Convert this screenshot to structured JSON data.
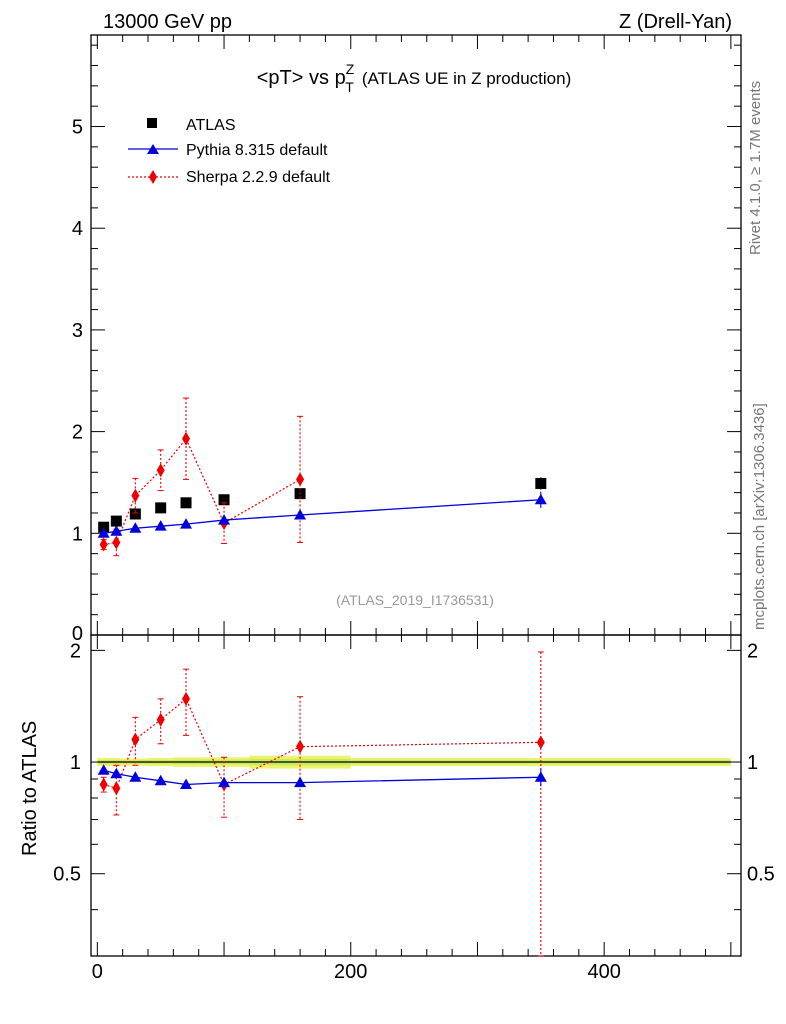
{
  "header": {
    "left": "13000 GeV pp",
    "right": "Z (Drell-Yan)"
  },
  "title": {
    "main": "<pT> vs p",
    "sup": "Z",
    "sub": "T",
    "suffix": "(ATLAS UE in Z production)"
  },
  "side_labels": {
    "rivet": "Rivet 4.1.0, ≥ 1.7M events",
    "site": "mcplots.cern.ch [arXiv:1306.3436]"
  },
  "watermark": "(ATLAS_2019_I1736531)",
  "colors": {
    "data": "#000000",
    "pythia": "#0000dd",
    "sherpa": "#ee0000",
    "band_outer": "#eef36a",
    "band_inner": "#c8ec60"
  },
  "chart_data": [
    {
      "type": "scatter",
      "panel": "main",
      "title": "<pT> vs pT^Z (ATLAS UE in Z production)",
      "xlabel": "",
      "ylabel": "",
      "xlim": [
        -5,
        508
      ],
      "ylim": [
        0,
        5.9
      ],
      "y_ticks": [
        "1",
        "2",
        "3",
        "4",
        "5"
      ],
      "y_tick_values": [
        1,
        2,
        3,
        4,
        5
      ],
      "y_zero_label": "0",
      "legend": {
        "position": "top-left",
        "entries": [
          "ATLAS",
          "Pythia 8.315 default",
          "Sherpa 2.2.9 default"
        ]
      },
      "series": [
        {
          "name": "ATLAS",
          "style": "square",
          "x": [
            5,
            15,
            30,
            50,
            70,
            100,
            160,
            350
          ],
          "y": [
            1.06,
            1.12,
            1.19,
            1.25,
            1.3,
            1.33,
            1.39,
            1.49
          ],
          "err": [
            0.02,
            0.02,
            0.02,
            0.02,
            0.03,
            0.03,
            0.04,
            0.06
          ]
        },
        {
          "name": "Pythia 8.315 default",
          "style": "triangle-line",
          "x": [
            5,
            15,
            30,
            50,
            70,
            100,
            160,
            350
          ],
          "y": [
            1.0,
            1.02,
            1.05,
            1.07,
            1.09,
            1.13,
            1.18,
            1.33
          ],
          "err": [
            0.01,
            0.01,
            0.01,
            0.01,
            0.01,
            0.02,
            0.03,
            0.08
          ]
        },
        {
          "name": "Sherpa 2.2.9 default",
          "style": "diamond-dotted",
          "x": [
            5,
            15,
            30,
            50,
            70,
            100,
            160
          ],
          "y": [
            0.89,
            0.91,
            1.37,
            1.62,
            1.93,
            1.1,
            1.53
          ],
          "err": [
            0.05,
            0.13,
            0.17,
            0.2,
            0.4,
            0.2,
            0.62
          ]
        }
      ]
    },
    {
      "type": "scatter",
      "panel": "ratio",
      "ylabel": "Ratio to ATLAS",
      "xlim": [
        -5,
        508
      ],
      "ylim": [
        0.3,
        2.2
      ],
      "x_ticks": [
        "0",
        "200",
        "400"
      ],
      "x_tick_values": [
        0,
        200,
        400
      ],
      "y_ticks": [
        "0.5",
        "1",
        "2"
      ],
      "y_tick_values": [
        0.5,
        1,
        2
      ],
      "reference_line": 1,
      "band": {
        "x_edges": [
          0,
          10,
          20,
          40,
          60,
          80,
          120,
          200,
          500
        ],
        "outer": [
          0.025,
          0.025,
          0.022,
          0.025,
          0.03,
          0.03,
          0.04,
          0.025
        ],
        "inner": [
          0.012,
          0.012,
          0.012,
          0.012,
          0.015,
          0.015,
          0.02,
          0.012
        ]
      },
      "series": [
        {
          "name": "Pythia 8.315 default",
          "style": "triangle-line",
          "x": [
            5,
            15,
            30,
            50,
            70,
            100,
            160,
            350
          ],
          "y": [
            0.95,
            0.93,
            0.91,
            0.89,
            0.87,
            0.88,
            0.88,
            0.91
          ],
          "err": [
            0.01,
            0.01,
            0.01,
            0.01,
            0.01,
            0.01,
            0.02,
            0.05
          ]
        },
        {
          "name": "Sherpa 2.2.9 default",
          "style": "diamond-dotted",
          "x": [
            5,
            15,
            30,
            50,
            70,
            100,
            160,
            350
          ],
          "y": [
            0.87,
            0.85,
            1.15,
            1.3,
            1.48,
            0.87,
            1.1,
            1.13
          ],
          "err": [
            0.04,
            0.13,
            0.17,
            0.18,
            0.3,
            0.16,
            0.4,
            0.85
          ]
        }
      ]
    }
  ]
}
